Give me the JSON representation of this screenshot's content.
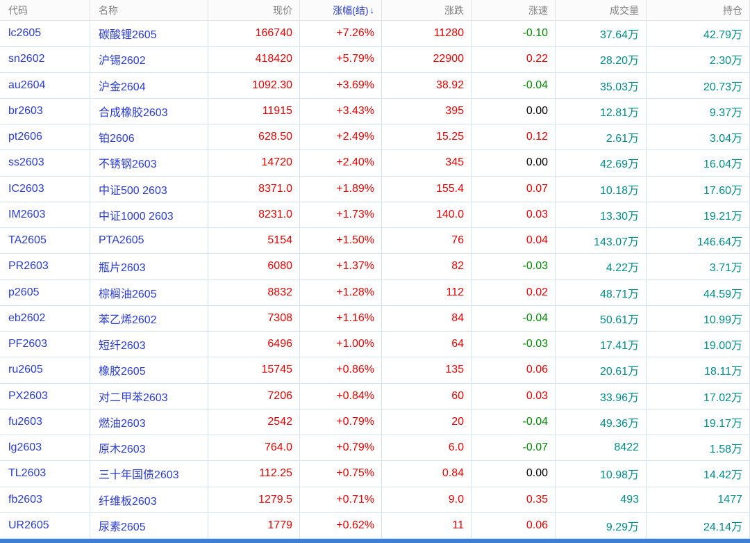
{
  "table": {
    "sort_icon": "↓",
    "columns": [
      {
        "key": "code",
        "label": "代码",
        "align": "left",
        "sorted": false
      },
      {
        "key": "name",
        "label": "名称",
        "align": "left",
        "sorted": false
      },
      {
        "key": "price",
        "label": "现价",
        "align": "right",
        "sorted": false
      },
      {
        "key": "change_pct",
        "label": "涨幅(结)",
        "align": "right",
        "sorted": true
      },
      {
        "key": "change",
        "label": "涨跌",
        "align": "right",
        "sorted": false
      },
      {
        "key": "speed",
        "label": "涨速",
        "align": "right",
        "sorted": false
      },
      {
        "key": "volume",
        "label": "成交量",
        "align": "right",
        "sorted": false
      },
      {
        "key": "open_interest",
        "label": "持仓",
        "align": "right",
        "sorted": false
      }
    ],
    "rows": [
      {
        "code": "lc2605",
        "name": "碳酸锂2605",
        "price": "166740",
        "change_pct": "+7.26%",
        "change": "11280",
        "speed": "-0.10",
        "volume": "37.64万",
        "open_interest": "42.79万"
      },
      {
        "code": "sn2602",
        "name": "沪锡2602",
        "price": "418420",
        "change_pct": "+5.79%",
        "change": "22900",
        "speed": "0.22",
        "volume": "28.20万",
        "open_interest": "2.30万"
      },
      {
        "code": "au2604",
        "name": "沪金2604",
        "price": "1092.30",
        "change_pct": "+3.69%",
        "change": "38.92",
        "speed": "-0.04",
        "volume": "35.03万",
        "open_interest": "20.73万"
      },
      {
        "code": "br2603",
        "name": "合成橡胶2603",
        "price": "11915",
        "change_pct": "+3.43%",
        "change": "395",
        "speed": "0.00",
        "volume": "12.81万",
        "open_interest": "9.37万"
      },
      {
        "code": "pt2606",
        "name": "铂2606",
        "price": "628.50",
        "change_pct": "+2.49%",
        "change": "15.25",
        "speed": "0.12",
        "volume": "2.61万",
        "open_interest": "3.04万"
      },
      {
        "code": "ss2603",
        "name": "不锈钢2603",
        "price": "14720",
        "change_pct": "+2.40%",
        "change": "345",
        "speed": "0.00",
        "volume": "42.69万",
        "open_interest": "16.04万"
      },
      {
        "code": "IC2603",
        "name": "中证500 2603",
        "price": "8371.0",
        "change_pct": "+1.89%",
        "change": "155.4",
        "speed": "0.07",
        "volume": "10.18万",
        "open_interest": "17.60万"
      },
      {
        "code": "IM2603",
        "name": "中证1000 2603",
        "price": "8231.0",
        "change_pct": "+1.73%",
        "change": "140.0",
        "speed": "0.03",
        "volume": "13.30万",
        "open_interest": "19.21万"
      },
      {
        "code": "TA2605",
        "name": "PTA2605",
        "price": "5154",
        "change_pct": "+1.50%",
        "change": "76",
        "speed": "0.04",
        "volume": "143.07万",
        "open_interest": "146.64万"
      },
      {
        "code": "PR2603",
        "name": "瓶片2603",
        "price": "6080",
        "change_pct": "+1.37%",
        "change": "82",
        "speed": "-0.03",
        "volume": "4.22万",
        "open_interest": "3.71万"
      },
      {
        "code": "p2605",
        "name": "棕榈油2605",
        "price": "8832",
        "change_pct": "+1.28%",
        "change": "112",
        "speed": "0.02",
        "volume": "48.71万",
        "open_interest": "44.59万"
      },
      {
        "code": "eb2602",
        "name": "苯乙烯2602",
        "price": "7308",
        "change_pct": "+1.16%",
        "change": "84",
        "speed": "-0.04",
        "volume": "50.61万",
        "open_interest": "10.99万"
      },
      {
        "code": "PF2603",
        "name": "短纤2603",
        "price": "6496",
        "change_pct": "+1.00%",
        "change": "64",
        "speed": "-0.03",
        "volume": "17.41万",
        "open_interest": "19.00万"
      },
      {
        "code": "ru2605",
        "name": "橡胶2605",
        "price": "15745",
        "change_pct": "+0.86%",
        "change": "135",
        "speed": "0.06",
        "volume": "20.61万",
        "open_interest": "18.11万"
      },
      {
        "code": "PX2603",
        "name": "对二甲苯2603",
        "price": "7206",
        "change_pct": "+0.84%",
        "change": "60",
        "speed": "0.03",
        "volume": "33.96万",
        "open_interest": "17.02万"
      },
      {
        "code": "fu2603",
        "name": "燃油2603",
        "price": "2542",
        "change_pct": "+0.79%",
        "change": "20",
        "speed": "-0.04",
        "volume": "49.36万",
        "open_interest": "19.17万"
      },
      {
        "code": "lg2603",
        "name": "原木2603",
        "price": "764.0",
        "change_pct": "+0.79%",
        "change": "6.0",
        "speed": "-0.07",
        "volume": "8422",
        "open_interest": "1.58万"
      },
      {
        "code": "TL2603",
        "name": "三十年国债2603",
        "price": "112.25",
        "change_pct": "+0.75%",
        "change": "0.84",
        "speed": "0.00",
        "volume": "10.98万",
        "open_interest": "14.42万"
      },
      {
        "code": "fb2603",
        "name": "纤维板2603",
        "price": "1279.5",
        "change_pct": "+0.71%",
        "change": "9.0",
        "speed": "0.35",
        "volume": "493",
        "open_interest": "1477"
      },
      {
        "code": "UR2605",
        "name": "尿素2605",
        "price": "1779",
        "change_pct": "+0.62%",
        "change": "11",
        "speed": "0.06",
        "volume": "9.29万",
        "open_interest": "24.14万"
      }
    ]
  },
  "colors": {
    "up": "#e60000",
    "down": "#008800",
    "flat": "#000000",
    "link": "#2a3cd0",
    "vol": "#008b8b",
    "grid_border": "#d3e3f4",
    "header_text": "#808080",
    "header_bg": "#fbfbfb",
    "header_border": "#e2e2e2",
    "sorted_header": "#2a3cd0",
    "bottom_bar": "#3f7ed8"
  }
}
